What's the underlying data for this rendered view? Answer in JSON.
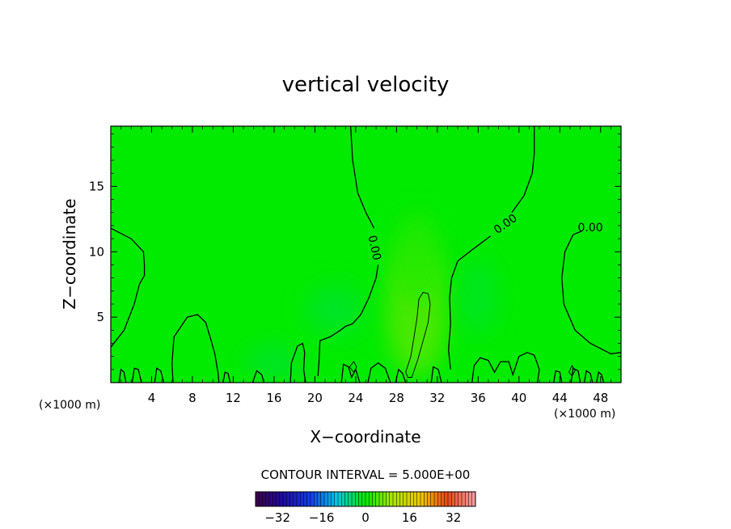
{
  "chart_data": {
    "type": "heatmap",
    "title": "vertical velocity",
    "xlabel": "X−coordinate",
    "ylabel": "Z−coordinate",
    "x_unit": "(×1000 m)",
    "y_unit": "(×1000 m)",
    "xlim": [
      0,
      50
    ],
    "ylim": [
      0,
      19.6
    ],
    "x_ticks": [
      4,
      8,
      12,
      16,
      20,
      24,
      28,
      32,
      36,
      40,
      44,
      48
    ],
    "y_ticks": [
      5,
      10,
      15
    ],
    "contour_interval_text": "CONTOUR INTERVAL = 5.000E+00",
    "contour_labels": [
      {
        "text": "0.00",
        "x": 25.8,
        "y": 10.3,
        "angle": 78
      },
      {
        "text": "0.00",
        "x": 38.7,
        "y": 12.1,
        "angle": -35
      },
      {
        "text": "0.00",
        "x": 47.0,
        "y": 11.8,
        "angle": 0
      }
    ],
    "colorbar": {
      "range": [
        -40,
        40
      ],
      "ticks": [
        -32,
        -16,
        0,
        16,
        32
      ]
    },
    "field": {
      "background_value": 0,
      "description_free_blobs": [
        {
          "x": 30,
          "y": 5.5,
          "rx": 3.0,
          "ry": 5.0,
          "value": 5
        },
        {
          "x": 30,
          "y": 9.5,
          "rx": 2.5,
          "ry": 3.5,
          "value": 2
        },
        {
          "x": 16,
          "y": 1.5,
          "rx": 3.0,
          "ry": 1.5,
          "value": -2
        },
        {
          "x": 22,
          "y": 5.5,
          "rx": 3.0,
          "ry": 2.0,
          "value": -2
        },
        {
          "x": 36,
          "y": 6.5,
          "rx": 2.0,
          "ry": 3.0,
          "value": -1.5
        }
      ]
    },
    "contours": {
      "zero_lines": [
        [
          [
            0,
            11.8
          ],
          [
            2,
            11.0
          ],
          [
            3.2,
            10.0
          ],
          [
            3.3,
            9.0
          ],
          [
            3.3,
            8.2
          ],
          [
            2.8,
            7.5
          ],
          [
            2.3,
            6.0
          ],
          [
            1.3,
            4.0
          ],
          [
            0,
            2.7
          ]
        ],
        [
          [
            23.5,
            19.6
          ],
          [
            23.7,
            17.0
          ],
          [
            24.2,
            14.5
          ],
          [
            25.0,
            13.0
          ],
          [
            25.8,
            11.8
          ]
        ],
        [
          [
            26.2,
            9.0
          ],
          [
            26.0,
            8.0
          ],
          [
            25.3,
            6.5
          ],
          [
            24.5,
            5.2
          ],
          [
            23.7,
            4.5
          ],
          [
            23.0,
            4.3
          ],
          [
            22.5,
            4.0
          ],
          [
            21.5,
            3.5
          ],
          [
            20.5,
            3.2
          ],
          [
            20.4,
            1.5
          ],
          [
            20.3,
            0.5
          ]
        ],
        [
          [
            41.5,
            19.6
          ],
          [
            41.5,
            17.5
          ],
          [
            41.3,
            16.0
          ],
          [
            40.5,
            14.3
          ],
          [
            39.3,
            13.0
          ]
        ],
        [
          [
            37.2,
            11.2
          ],
          [
            35.5,
            10.2
          ],
          [
            34.0,
            9.3
          ],
          [
            33.4,
            8.0
          ],
          [
            33.2,
            6.5
          ],
          [
            33.3,
            4.5
          ],
          [
            33.1,
            2.5
          ],
          [
            33.3,
            1.0
          ]
        ],
        [
          [
            46.2,
            11.6
          ],
          [
            45.3,
            11.3
          ],
          [
            44.5,
            10.0
          ],
          [
            44.2,
            8.0
          ],
          [
            44.4,
            6.0
          ],
          [
            45.5,
            4.0
          ],
          [
            47.0,
            3.0
          ],
          [
            49.0,
            2.2
          ],
          [
            50,
            2.3
          ]
        ],
        [
          [
            6.1,
            0
          ],
          [
            6.0,
            1.5
          ],
          [
            6.2,
            3.5
          ],
          [
            7.5,
            5.0
          ],
          [
            8.5,
            5.2
          ],
          [
            9.3,
            4.6
          ],
          [
            9.8,
            3.3
          ],
          [
            10.2,
            2.2
          ],
          [
            10.5,
            0.8
          ],
          [
            10.6,
            0
          ]
        ],
        [
          [
            17.6,
            0
          ],
          [
            17.7,
            1.5
          ],
          [
            18.3,
            2.8
          ],
          [
            18.8,
            3.0
          ],
          [
            19.0,
            2.3
          ],
          [
            18.9,
            1.0
          ],
          [
            19.1,
            0
          ]
        ],
        [
          [
            13.9,
            0
          ],
          [
            14.3,
            0.9
          ],
          [
            14.8,
            0.6
          ],
          [
            15.0,
            0
          ]
        ],
        [
          [
            0.8,
            0
          ],
          [
            1.0,
            1.0
          ],
          [
            1.3,
            0.8
          ],
          [
            1.5,
            0
          ]
        ],
        [
          [
            2.1,
            0
          ],
          [
            2.3,
            1.1
          ],
          [
            2.7,
            1.0
          ],
          [
            3.0,
            0
          ]
        ],
        [
          [
            4.3,
            0
          ],
          [
            4.5,
            1.1
          ],
          [
            4.9,
            0.9
          ],
          [
            5.2,
            0
          ]
        ],
        [
          [
            11.0,
            0
          ],
          [
            11.2,
            0.8
          ],
          [
            11.5,
            0.7
          ],
          [
            11.7,
            0
          ]
        ],
        [
          [
            22.6,
            0
          ],
          [
            22.8,
            1.4
          ],
          [
            23.3,
            1.2
          ],
          [
            23.6,
            0.4
          ],
          [
            24.0,
            1.0
          ],
          [
            24.4,
            0
          ]
        ],
        [
          [
            25.2,
            0
          ],
          [
            25.5,
            1.1
          ],
          [
            26.2,
            1.5
          ],
          [
            26.9,
            1.1
          ],
          [
            27.4,
            0
          ]
        ],
        [
          [
            27.9,
            0
          ],
          [
            28.2,
            1.0
          ],
          [
            28.6,
            0.7
          ],
          [
            28.9,
            0
          ]
        ],
        [
          [
            31.4,
            0
          ],
          [
            31.6,
            1.2
          ],
          [
            32.1,
            1.0
          ],
          [
            32.4,
            0
          ]
        ],
        [
          [
            35.4,
            0
          ],
          [
            35.6,
            1.3
          ],
          [
            36.2,
            1.9
          ],
          [
            37.0,
            1.7
          ],
          [
            37.6,
            0.8
          ],
          [
            38.2,
            1.6
          ],
          [
            39.0,
            1.6
          ],
          [
            39.4,
            0.6
          ],
          [
            40.0,
            2.0
          ],
          [
            40.8,
            2.3
          ],
          [
            41.5,
            2.1
          ],
          [
            42.0,
            1.0
          ],
          [
            41.8,
            0
          ]
        ],
        [
          [
            43.4,
            0
          ],
          [
            43.6,
            0.9
          ],
          [
            44.0,
            0.8
          ],
          [
            44.2,
            0
          ]
        ],
        [
          [
            45.1,
            0
          ],
          [
            45.3,
            1.1
          ],
          [
            45.8,
            0.9
          ],
          [
            46.0,
            0
          ]
        ],
        [
          [
            46.4,
            0
          ],
          [
            46.6,
            0.9
          ],
          [
            47.0,
            0.7
          ],
          [
            47.2,
            0
          ]
        ],
        [
          [
            47.6,
            0
          ],
          [
            47.8,
            0.8
          ],
          [
            48.1,
            0.6
          ],
          [
            48.3,
            0
          ]
        ]
      ],
      "closed_loops": [
        [
          [
            29.5,
            0.4
          ],
          [
            30.1,
            1.8
          ],
          [
            30.6,
            3.2
          ],
          [
            31.1,
            4.6
          ],
          [
            31.3,
            6.0
          ],
          [
            31.1,
            6.8
          ],
          [
            30.6,
            6.9
          ],
          [
            30.2,
            6.4
          ],
          [
            30.0,
            4.9
          ],
          [
            29.7,
            3.4
          ],
          [
            29.4,
            2.0
          ],
          [
            28.9,
            0.8
          ],
          [
            29.1,
            0.4
          ]
        ],
        [
          [
            44.9,
            0.8
          ],
          [
            45.2,
            1.3
          ],
          [
            45.5,
            0.9
          ],
          [
            45.2,
            0.5
          ]
        ],
        [
          [
            23.4,
            1.2
          ],
          [
            23.8,
            1.6
          ],
          [
            24.1,
            1.2
          ],
          [
            23.8,
            0.8
          ]
        ]
      ]
    }
  }
}
